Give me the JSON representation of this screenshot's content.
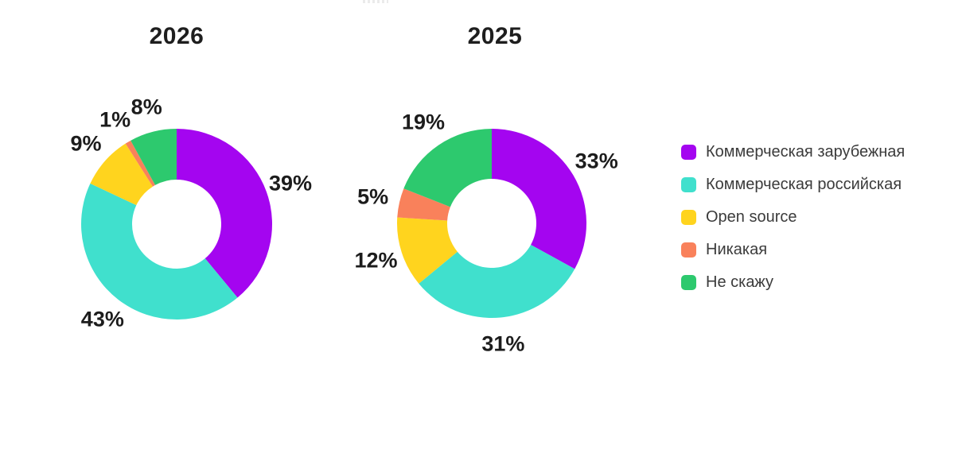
{
  "chart_data": [
    {
      "type": "pie",
      "donut": true,
      "title": "2026",
      "categories": [
        "Коммерческая зарубежная",
        "Коммерческая российская",
        "Open source",
        "Никакая",
        "Не скажу"
      ],
      "values": [
        39,
        43,
        9,
        1,
        8
      ],
      "labels": [
        "39%",
        "43%",
        "9%",
        "1%",
        "8%"
      ],
      "colors": [
        "#A405F0",
        "#40E0CD",
        "#FFD41E",
        "#F9815B",
        "#2DC96E"
      ],
      "start_angle_deg": 0,
      "direction": "clockwise",
      "inner_radius_ratio": 0.47,
      "legend_position": "right"
    },
    {
      "type": "pie",
      "donut": true,
      "title": "2025",
      "categories": [
        "Коммерческая зарубежная",
        "Коммерческая российская",
        "Open source",
        "Никакая",
        "Не скажу"
      ],
      "values": [
        33,
        31,
        12,
        5,
        19
      ],
      "labels": [
        "33%",
        "31%",
        "12%",
        "5%",
        "19%"
      ],
      "colors": [
        "#A405F0",
        "#40E0CD",
        "#FFD41E",
        "#F9815B",
        "#2DC96E"
      ],
      "start_angle_deg": 0,
      "direction": "clockwise",
      "inner_radius_ratio": 0.47,
      "legend_position": "right"
    }
  ],
  "legend": {
    "items": [
      {
        "label": "Коммерческая зарубежная",
        "color": "#A405F0"
      },
      {
        "label": "Коммерческая российская",
        "color": "#40E0CD"
      },
      {
        "label": "Open source",
        "color": "#FFD41E"
      },
      {
        "label": "Никакая",
        "color": "#F9815B"
      },
      {
        "label": "Не скажу",
        "color": "#2DC96E"
      }
    ]
  },
  "style": {
    "label_text_color": "#1c1c1c",
    "title_text_color": "#1e1e1e",
    "legend_text_color": "#3b3b3b",
    "background_color": "#ffffff"
  }
}
